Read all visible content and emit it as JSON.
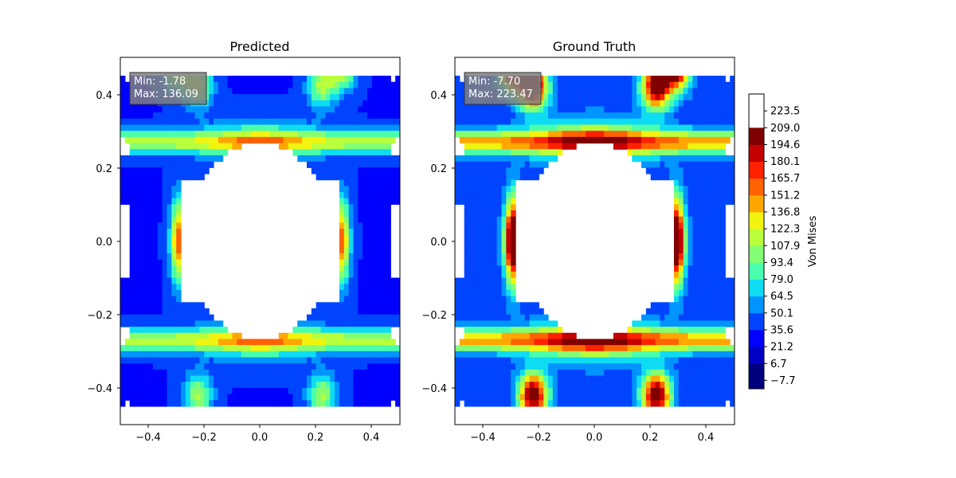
{
  "chart_data": [
    {
      "type": "heatmap",
      "title": "Predicted",
      "xlim": [
        -0.5,
        0.5
      ],
      "ylim": [
        -0.5,
        0.5
      ],
      "xticks": [
        "−0.4",
        "−0.2",
        "0.0",
        "0.2",
        "0.4"
      ],
      "yticks": [
        "−0.4",
        "−0.2",
        "0.0",
        "0.2",
        "0.4"
      ],
      "annotation": {
        "min_label": "Min: -1.78",
        "max_label": "Max: 136.09"
      },
      "min": -1.78,
      "max": 136.09,
      "field": {
        "base": 35,
        "arch": 48,
        "bulge_peak": 131,
        "lobe_peak": 75,
        "hole_edge": 78,
        "top_tip": 110
      }
    },
    {
      "type": "heatmap",
      "title": "Ground Truth",
      "xlim": [
        -0.5,
        0.5
      ],
      "ylim": [
        -0.5,
        0.5
      ],
      "xticks": [
        "−0.4",
        "−0.2",
        "0.0",
        "0.2",
        "0.4"
      ],
      "yticks": [
        "−0.4",
        "−0.2",
        "0.0",
        "0.2",
        "0.4"
      ],
      "annotation": {
        "min_label": "Min: -7.70",
        "max_label": "Max: 223.47"
      },
      "min": -7.7,
      "max": 223.47,
      "field": {
        "base": 42,
        "arch": 72,
        "bulge_peak": 215,
        "lobe_peak": 175,
        "hole_edge": 105,
        "top_tip": 215
      }
    }
  ],
  "colorbar": {
    "label": "Von Mises",
    "ticks": [
      "−7.7",
      "6.7",
      "21.2",
      "35.6",
      "50.1",
      "64.5",
      "79.0",
      "93.4",
      "107.9",
      "122.3",
      "136.8",
      "151.2",
      "165.7",
      "180.1",
      "194.6",
      "209.0",
      "223.5"
    ],
    "levels": [
      -7.7,
      6.7,
      21.2,
      35.6,
      50.1,
      64.5,
      79.0,
      93.4,
      107.9,
      122.3,
      136.8,
      151.2,
      165.7,
      180.1,
      194.6,
      209.0,
      223.5
    ],
    "colors": [
      "#00007f",
      "#0000c4",
      "#0000ff",
      "#0044ff",
      "#0094ff",
      "#0edcf2",
      "#49ffad",
      "#84ff73",
      "#b9ff3c",
      "#f2f40f",
      "#ffa700",
      "#ff6200",
      "#ff2100",
      "#c40000",
      "#7f0000"
    ]
  }
}
